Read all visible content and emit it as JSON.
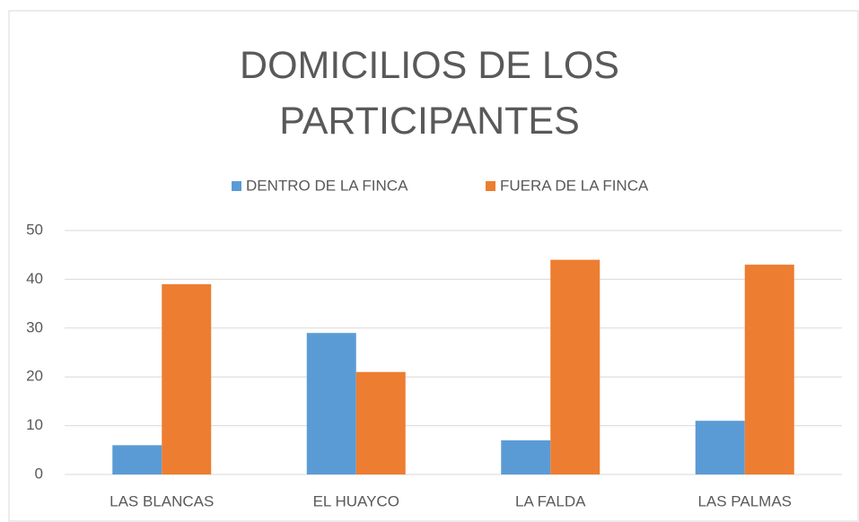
{
  "chart_data": {
    "type": "bar",
    "title": "DOMICILIOS DE LOS PARTICIPANTES",
    "categories": [
      "LAS BLANCAS",
      "EL HUAYCO",
      "LA FALDA",
      "LAS PALMAS"
    ],
    "series": [
      {
        "name": "DENTRO DE LA FINCA",
        "color": "#5b9bd5",
        "values": [
          6,
          29,
          7,
          11
        ]
      },
      {
        "name": "FUERA DE LA FINCA",
        "color": "#ed7d31",
        "values": [
          39,
          21,
          44,
          43
        ]
      }
    ],
    "ylim": [
      0,
      50
    ],
    "yticks": [
      0,
      10,
      20,
      30,
      40,
      50
    ],
    "grid": true,
    "legend": "top"
  }
}
